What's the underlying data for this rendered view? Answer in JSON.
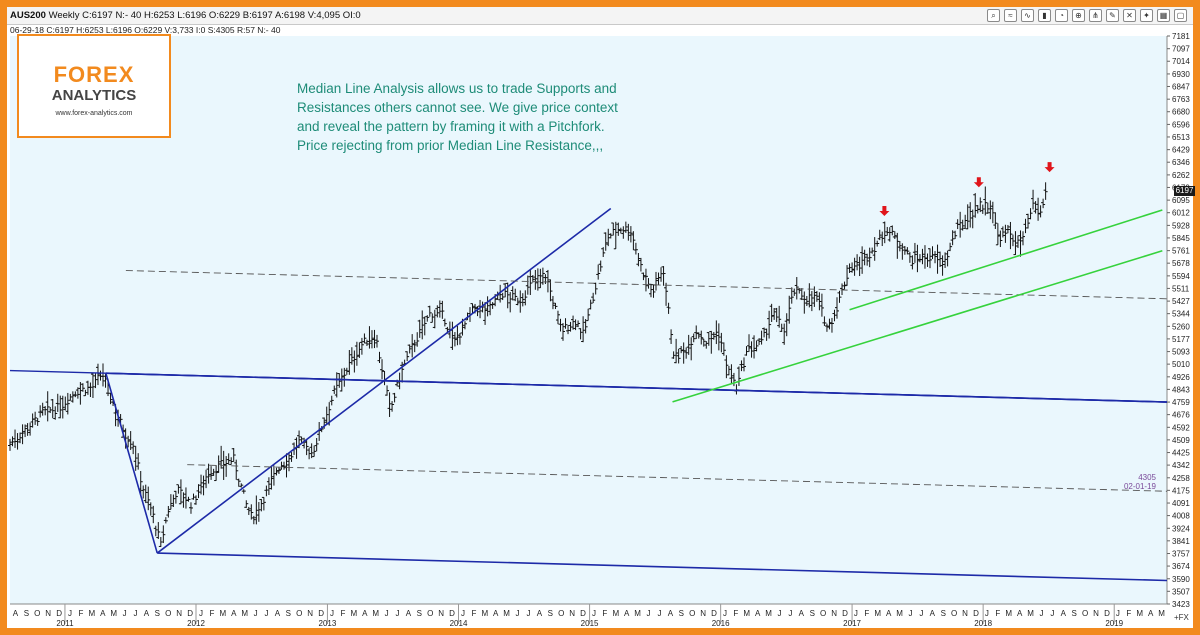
{
  "window": {
    "symbol": "AUS200",
    "title_rest": "Weekly C:6197 N:- 40 H:6253 L:6196 O:6229 B:6197 A:6198 V:4,095 OI:0",
    "info_line": "06-29-18 C:6197 H:6253 L:6196 O:6229 V:3,733 I:0 S:4305 R:57 N:- 40",
    "toolbar_icons": [
      "zoom-icon",
      "wave-icon",
      "wave2-icon",
      "bar-icon",
      "clock-icon",
      "compass-icon",
      "pitchfork-icon",
      "tool-icon",
      "cross-icon",
      "star-icon",
      "grid-icon",
      "window-icon"
    ]
  },
  "logo": {
    "forex": "FOREX",
    "analytics": "ANALYTICS",
    "url": "www.forex-analytics.com",
    "brand_color": "#f28a1e"
  },
  "annotation": {
    "lines": [
      "Median Line Analysis allows us to trade Supports and",
      "Resistances others cannot see. We give price context",
      "and reveal the pattern by framing it with a Pitchfork.",
      "Price rejecting from prior Median Line Resistance,,,"
    ]
  },
  "side_label": {
    "value": "4305",
    "date": "02-01-19"
  },
  "price_marker": "6197",
  "corner_label": "+FX",
  "chart_data": {
    "type": "bar",
    "title": "",
    "series_name": "AUS200 Weekly",
    "last_price": 6197,
    "y_ticks": [
      7181,
      7097,
      7014,
      6930,
      6847,
      6763,
      6680,
      6596,
      6513,
      6429,
      6346,
      6262,
      6179,
      6095,
      6012,
      5928,
      5845,
      5761,
      5678,
      5594,
      5511,
      5427,
      5344,
      5260,
      5177,
      5093,
      5010,
      4926,
      4843,
      4759,
      4676,
      4592,
      4509,
      4425,
      4342,
      4258,
      4175,
      4091,
      4008,
      3924,
      3841,
      3757,
      3674,
      3590,
      3507,
      3423
    ],
    "ylim": [
      3423,
      7181
    ],
    "x_month_labels": [
      "A",
      "S",
      "O",
      "N",
      "D",
      "J",
      "F",
      "M",
      "A",
      "M",
      "J",
      "J",
      "A",
      "S",
      "O",
      "N",
      "D",
      "J",
      "F",
      "M",
      "A",
      "M",
      "J",
      "J",
      "A",
      "S",
      "O",
      "N",
      "D",
      "J",
      "F",
      "M",
      "A",
      "M",
      "J",
      "J",
      "A",
      "S",
      "O",
      "N",
      "D",
      "J",
      "F",
      "M",
      "A",
      "M",
      "J",
      "J",
      "A",
      "S",
      "O",
      "N",
      "D",
      "J",
      "F",
      "M",
      "A",
      "M",
      "J",
      "J",
      "A",
      "S",
      "O",
      "N",
      "D",
      "J",
      "F",
      "M",
      "A",
      "M",
      "J",
      "J",
      "A",
      "S",
      "O",
      "N",
      "D",
      "J",
      "F",
      "M",
      "A",
      "M",
      "J",
      "J",
      "A",
      "S",
      "O",
      "N",
      "D",
      "J",
      "F",
      "M",
      "A",
      "M",
      "J",
      "J",
      "A",
      "S",
      "O",
      "N",
      "D",
      "J",
      "F",
      "M",
      "A",
      "M"
    ],
    "x_year_labels": [
      "2011",
      "2012",
      "2013",
      "2014",
      "2015",
      "2016",
      "2017",
      "2018",
      "2019"
    ],
    "x_range": [
      "2010-08",
      "2019-05"
    ],
    "background": "#eaf7fd",
    "price_points": [
      [
        "2010-08-01",
        4480
      ],
      [
        "2010-09-15",
        4580
      ],
      [
        "2010-11-01",
        4690
      ],
      [
        "2010-12-15",
        4720
      ],
      [
        "2011-02-01",
        4830
      ],
      [
        "2011-03-20",
        4860
      ],
      [
        "2011-04-15",
        4950
      ],
      [
        "2011-05-10",
        4780
      ],
      [
        "2011-06-15",
        4560
      ],
      [
        "2011-07-10",
        4480
      ],
      [
        "2011-08-05",
        4200
      ],
      [
        "2011-09-01",
        4030
      ],
      [
        "2011-09-25",
        3810
      ],
      [
        "2011-10-15",
        4040
      ],
      [
        "2011-11-10",
        4180
      ],
      [
        "2011-12-20",
        4080
      ],
      [
        "2012-02-01",
        4280
      ],
      [
        "2012-03-15",
        4350
      ],
      [
        "2012-04-15",
        4380
      ],
      [
        "2012-05-20",
        4080
      ],
      [
        "2012-06-05",
        3990
      ],
      [
        "2012-07-05",
        4110
      ],
      [
        "2012-08-15",
        4320
      ],
      [
        "2012-09-15",
        4380
      ],
      [
        "2012-10-15",
        4500
      ],
      [
        "2012-11-20",
        4420
      ],
      [
        "2012-12-20",
        4620
      ],
      [
        "2013-01-20",
        4820
      ],
      [
        "2013-03-01",
        5000
      ],
      [
        "2013-04-10",
        5150
      ],
      [
        "2013-05-15",
        5200
      ],
      [
        "2013-06-25",
        4700
      ],
      [
        "2013-07-25",
        4950
      ],
      [
        "2013-08-20",
        5100
      ],
      [
        "2013-10-15",
        5350
      ],
      [
        "2013-11-20",
        5330
      ],
      [
        "2013-12-20",
        5150
      ],
      [
        "2014-02-15",
        5380
      ],
      [
        "2014-03-25",
        5370
      ],
      [
        "2014-05-01",
        5480
      ],
      [
        "2014-06-20",
        5430
      ],
      [
        "2014-08-01",
        5570
      ],
      [
        "2014-09-01",
        5600
      ],
      [
        "2014-10-15",
        5230
      ],
      [
        "2014-11-25",
        5300
      ],
      [
        "2014-12-15",
        5200
      ],
      [
        "2015-01-15",
        5500
      ],
      [
        "2015-02-20",
        5850
      ],
      [
        "2015-03-25",
        5910
      ],
      [
        "2015-04-25",
        5900
      ],
      [
        "2015-05-25",
        5650
      ],
      [
        "2015-06-25",
        5480
      ],
      [
        "2015-07-25",
        5650
      ],
      [
        "2015-08-25",
        5050
      ],
      [
        "2015-09-25",
        5100
      ],
      [
        "2015-10-25",
        5230
      ],
      [
        "2015-11-25",
        5150
      ],
      [
        "2015-12-25",
        5230
      ],
      [
        "2016-01-25",
        4950
      ],
      [
        "2016-02-15",
        4850
      ],
      [
        "2016-03-15",
        5100
      ],
      [
        "2016-04-25",
        5150
      ],
      [
        "2016-05-25",
        5350
      ],
      [
        "2016-06-25",
        5230
      ],
      [
        "2016-07-25",
        5500
      ],
      [
        "2016-08-25",
        5450
      ],
      [
        "2016-09-25",
        5450
      ],
      [
        "2016-10-25",
        5250
      ],
      [
        "2016-11-15",
        5350
      ],
      [
        "2016-12-25",
        5650
      ],
      [
        "2017-01-25",
        5670
      ],
      [
        "2017-03-01",
        5770
      ],
      [
        "2017-04-05",
        5900
      ],
      [
        "2017-05-10",
        5830
      ],
      [
        "2017-06-15",
        5700
      ],
      [
        "2017-07-15",
        5720
      ],
      [
        "2017-08-15",
        5710
      ],
      [
        "2017-09-15",
        5680
      ],
      [
        "2017-10-20",
        5900
      ],
      [
        "2017-11-25",
        6000
      ],
      [
        "2017-12-25",
        6060
      ],
      [
        "2018-01-25",
        6060
      ],
      [
        "2018-02-10",
        5850
      ],
      [
        "2018-03-15",
        5880
      ],
      [
        "2018-04-05",
        5800
      ],
      [
        "2018-04-25",
        5850
      ],
      [
        "2018-05-20",
        6050
      ],
      [
        "2018-06-10",
        6000
      ],
      [
        "2018-06-29",
        6197
      ]
    ],
    "pitchfork_blue": {
      "pivots": [
        [
          "2011-04-25",
          4950
        ],
        [
          "2011-09-15",
          3760
        ],
        [
          "2015-03-01",
          6040
        ]
      ],
      "lines": [
        "upper",
        "median",
        "lower",
        "lower-lower-parallel"
      ]
    },
    "dashed_warning_lines": 2,
    "green_lines": [
      {
        "start": [
          "2015-08-20",
          4760
        ],
        "end": [
          "2019-05-15",
          5760
        ]
      },
      {
        "start": [
          "2016-12-25",
          5370
        ],
        "end": [
          "2019-05-15",
          6030
        ]
      }
    ],
    "red_arrows": [
      [
        "2017-04-01",
        5990
      ],
      [
        "2017-12-20",
        6180
      ],
      [
        "2018-07-05",
        6280
      ]
    ],
    "grid": false,
    "legend": "none"
  }
}
